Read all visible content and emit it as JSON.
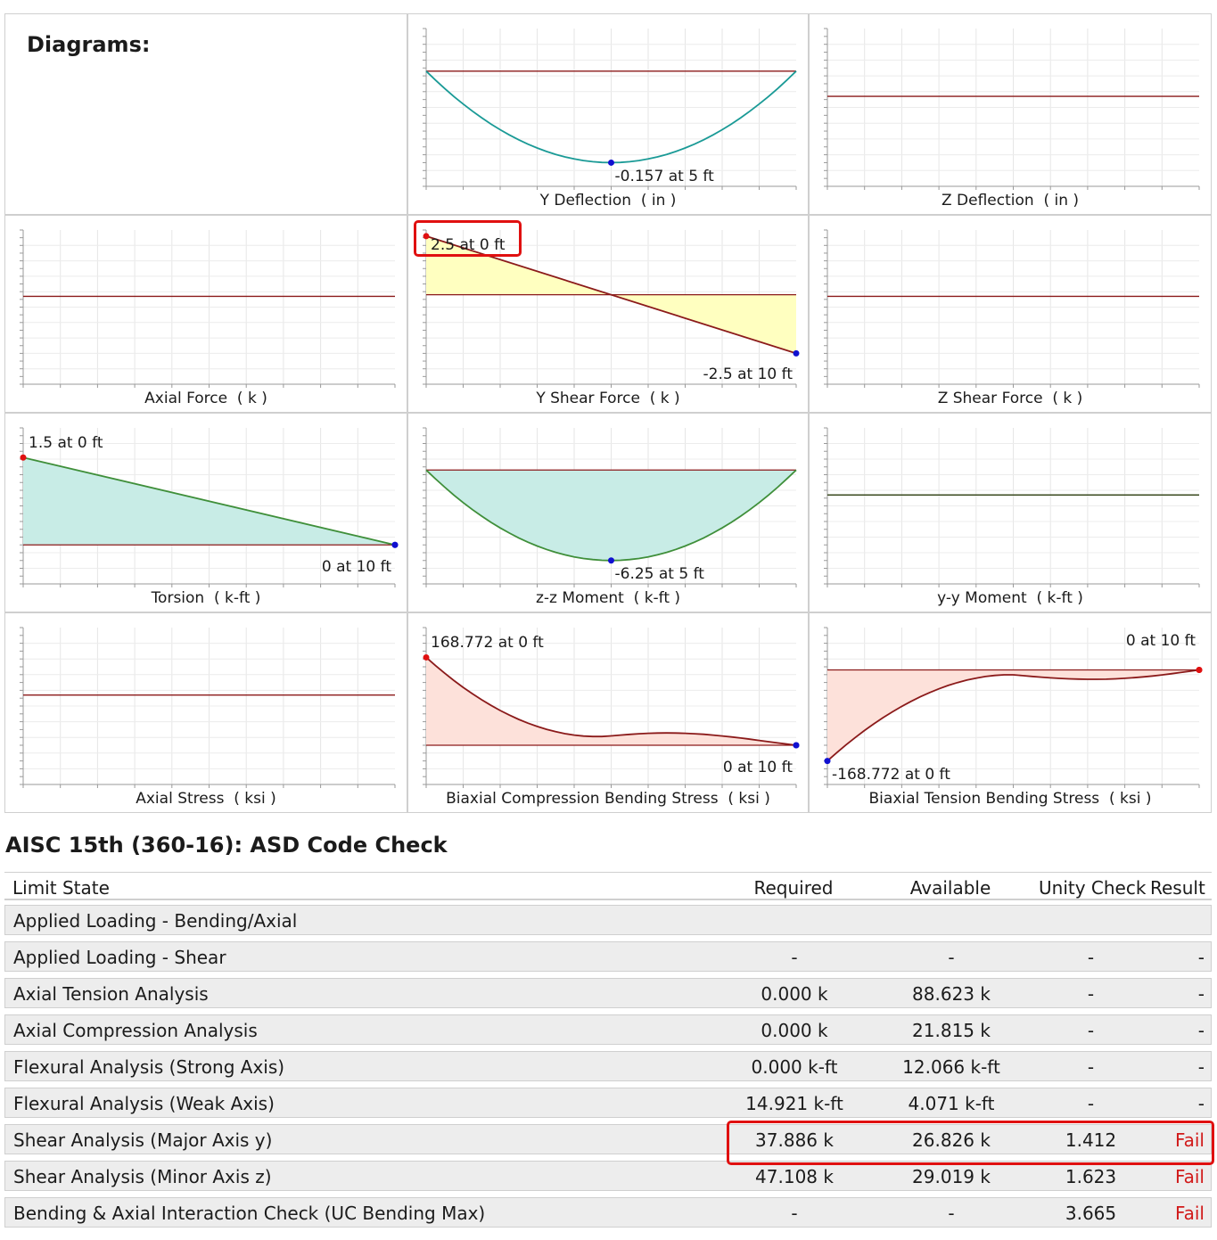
{
  "diagrams": {
    "heading": "Diagrams:",
    "panels": [
      {
        "id": "y-deflection",
        "caption": "Y Deflection  ( in )",
        "max_label": "",
        "min_label": "-0.157 at 5 ft"
      },
      {
        "id": "z-deflection",
        "caption": "Z Deflection  ( in )",
        "max_label": "",
        "min_label": ""
      },
      {
        "id": "axial-force",
        "caption": "Axial Force  ( k )",
        "max_label": "",
        "min_label": ""
      },
      {
        "id": "y-shear-force",
        "caption": "Y Shear Force  ( k )",
        "max_label": "2.5 at 0 ft",
        "min_label": "-2.5 at 10 ft"
      },
      {
        "id": "z-shear-force",
        "caption": "Z Shear Force  ( k )",
        "max_label": "",
        "min_label": ""
      },
      {
        "id": "torsion",
        "caption": "Torsion  ( k-ft )",
        "max_label": "1.5 at 0 ft",
        "min_label": "0 at 10 ft"
      },
      {
        "id": "zz-moment",
        "caption": "z-z Moment  ( k-ft )",
        "max_label": "",
        "min_label": "-6.25 at 5 ft"
      },
      {
        "id": "yy-moment",
        "caption": "y-y Moment  ( k-ft )",
        "max_label": "",
        "min_label": ""
      },
      {
        "id": "axial-stress",
        "caption": "Axial Stress  ( ksi )",
        "max_label": "",
        "min_label": ""
      },
      {
        "id": "biaxial-compression",
        "caption": "Biaxial Compression Bending Stress  ( ksi )",
        "max_label": "168.772 at 0 ft",
        "min_label": "0 at 10 ft"
      },
      {
        "id": "biaxial-tension",
        "caption": "Biaxial Tension Bending Stress  ( ksi )",
        "max_label": "0 at 10 ft",
        "min_label": "-168.772 at 0 ft"
      }
    ]
  },
  "chart_data": [
    {
      "type": "line",
      "title": "Y Deflection  ( in )",
      "x": [
        0,
        5,
        10
      ],
      "y": [
        0,
        -0.157,
        0
      ],
      "shape": "parabola",
      "line_color": "#1a9a96"
    },
    {
      "type": "line",
      "title": "Z Deflection  ( in )",
      "x": [
        0,
        10
      ],
      "y": [
        0,
        0
      ]
    },
    {
      "type": "line",
      "title": "Axial Force  ( k )",
      "x": [
        0,
        10
      ],
      "y": [
        0,
        0
      ]
    },
    {
      "type": "area",
      "title": "Y Shear Force  ( k )",
      "x": [
        0,
        10
      ],
      "y": [
        2.5,
        -2.5
      ],
      "fill": "#ffffc0"
    },
    {
      "type": "line",
      "title": "Z Shear Force  ( k )",
      "x": [
        0,
        10
      ],
      "y": [
        0,
        0
      ]
    },
    {
      "type": "area",
      "title": "Torsion  ( k-ft )",
      "x": [
        0,
        10
      ],
      "y": [
        1.5,
        0
      ],
      "fill": "#c8ece6",
      "line_color": "#3f8f3a"
    },
    {
      "type": "area",
      "title": "z-z Moment  ( k-ft )",
      "x": [
        0,
        5,
        10
      ],
      "y": [
        0,
        -6.25,
        0
      ],
      "shape": "parabola",
      "fill": "#c8ece6",
      "line_color": "#3f8f3a"
    },
    {
      "type": "line",
      "title": "y-y Moment  ( k-ft )",
      "x": [
        0,
        10
      ],
      "y": [
        0,
        0
      ]
    },
    {
      "type": "line",
      "title": "Axial Stress  ( ksi )",
      "x": [
        0,
        10
      ],
      "y": [
        0,
        0
      ]
    },
    {
      "type": "area",
      "title": "Biaxial Compression Bending Stress  ( ksi )",
      "x": [
        0,
        5,
        10
      ],
      "y": [
        168.772,
        18,
        0
      ],
      "fill": "#fde1da"
    },
    {
      "type": "area",
      "title": "Biaxial Tension Bending Stress  ( ksi )",
      "x": [
        0,
        5,
        10
      ],
      "y": [
        -168.772,
        -9,
        0
      ],
      "fill": "#fde1da"
    }
  ],
  "code_check": {
    "title": "AISC 15th (360-16): ASD Code Check",
    "headers": {
      "limit_state": "Limit State",
      "required": "Required",
      "available": "Available",
      "unity_check": "Unity Check",
      "result": "Result"
    },
    "rows": [
      {
        "name": "Applied Loading - Bending/Axial",
        "required": "",
        "available": "",
        "uc": "",
        "result": ""
      },
      {
        "name": "Applied Loading - Shear",
        "required": "-",
        "available": "-",
        "uc": "-",
        "result": "-"
      },
      {
        "name": "Axial Tension Analysis",
        "required": "0.000 k",
        "available": "88.623 k",
        "uc": "-",
        "result": "-"
      },
      {
        "name": "Axial Compression Analysis",
        "required": "0.000 k",
        "available": "21.815 k",
        "uc": "-",
        "result": "-"
      },
      {
        "name": "Flexural Analysis (Strong Axis)",
        "required": "0.000 k-ft",
        "available": "12.066 k-ft",
        "uc": "-",
        "result": "-"
      },
      {
        "name": "Flexural Analysis (Weak Axis)",
        "required": "14.921 k-ft",
        "available": "4.071 k-ft",
        "uc": "-",
        "result": "-"
      },
      {
        "name": "Shear Analysis (Major Axis y)",
        "required": "37.886 k",
        "available": "26.826 k",
        "uc": "1.412",
        "result": "Fail"
      },
      {
        "name": "Shear Analysis (Minor Axis z)",
        "required": "47.108 k",
        "available": "29.019 k",
        "uc": "1.623",
        "result": "Fail"
      },
      {
        "name": "Bending & Axial Interaction Check (UC Bending Max)",
        "required": "-",
        "available": "-",
        "uc": "3.665",
        "result": "Fail"
      }
    ]
  },
  "colors": {
    "baseline": "#8b1a1a",
    "fail": "#d11a1a",
    "highlight": "#e01010",
    "grid": "#e6e6e6"
  }
}
